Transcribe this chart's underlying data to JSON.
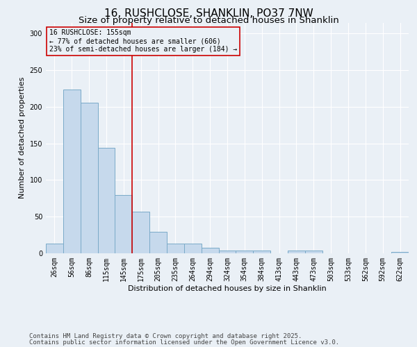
{
  "title1": "16, RUSHCLOSE, SHANKLIN, PO37 7NW",
  "title2": "Size of property relative to detached houses in Shanklin",
  "xlabel": "Distribution of detached houses by size in Shanklin",
  "ylabel": "Number of detached properties",
  "bin_labels": [
    "26sqm",
    "56sqm",
    "86sqm",
    "115sqm",
    "145sqm",
    "175sqm",
    "205sqm",
    "235sqm",
    "264sqm",
    "294sqm",
    "324sqm",
    "354sqm",
    "384sqm",
    "413sqm",
    "443sqm",
    "473sqm",
    "503sqm",
    "533sqm",
    "562sqm",
    "592sqm",
    "622sqm"
  ],
  "bar_values": [
    13,
    224,
    206,
    144,
    80,
    57,
    29,
    13,
    13,
    8,
    4,
    4,
    4,
    0,
    4,
    4,
    0,
    0,
    0,
    0,
    2
  ],
  "bar_color": "#c6d9ec",
  "bar_edge_color": "#7aaac8",
  "annotation_line1": "16 RUSHCLOSE: 155sqm",
  "annotation_line2": "← 77% of detached houses are smaller (606)",
  "annotation_line3": "23% of semi-detached houses are larger (184) →",
  "vline_x": 4.5,
  "vline_color": "#cc0000",
  "annotation_box_edgecolor": "#cc0000",
  "footnote1": "Contains HM Land Registry data © Crown copyright and database right 2025.",
  "footnote2": "Contains public sector information licensed under the Open Government Licence v3.0.",
  "background_color": "#eaf0f6",
  "ylim": [
    0,
    315
  ],
  "yticks": [
    0,
    50,
    100,
    150,
    200,
    250,
    300
  ],
  "title_fontsize": 11,
  "subtitle_fontsize": 9.5,
  "axis_fontsize": 8,
  "tick_fontsize": 7,
  "footnote_fontsize": 6.5
}
